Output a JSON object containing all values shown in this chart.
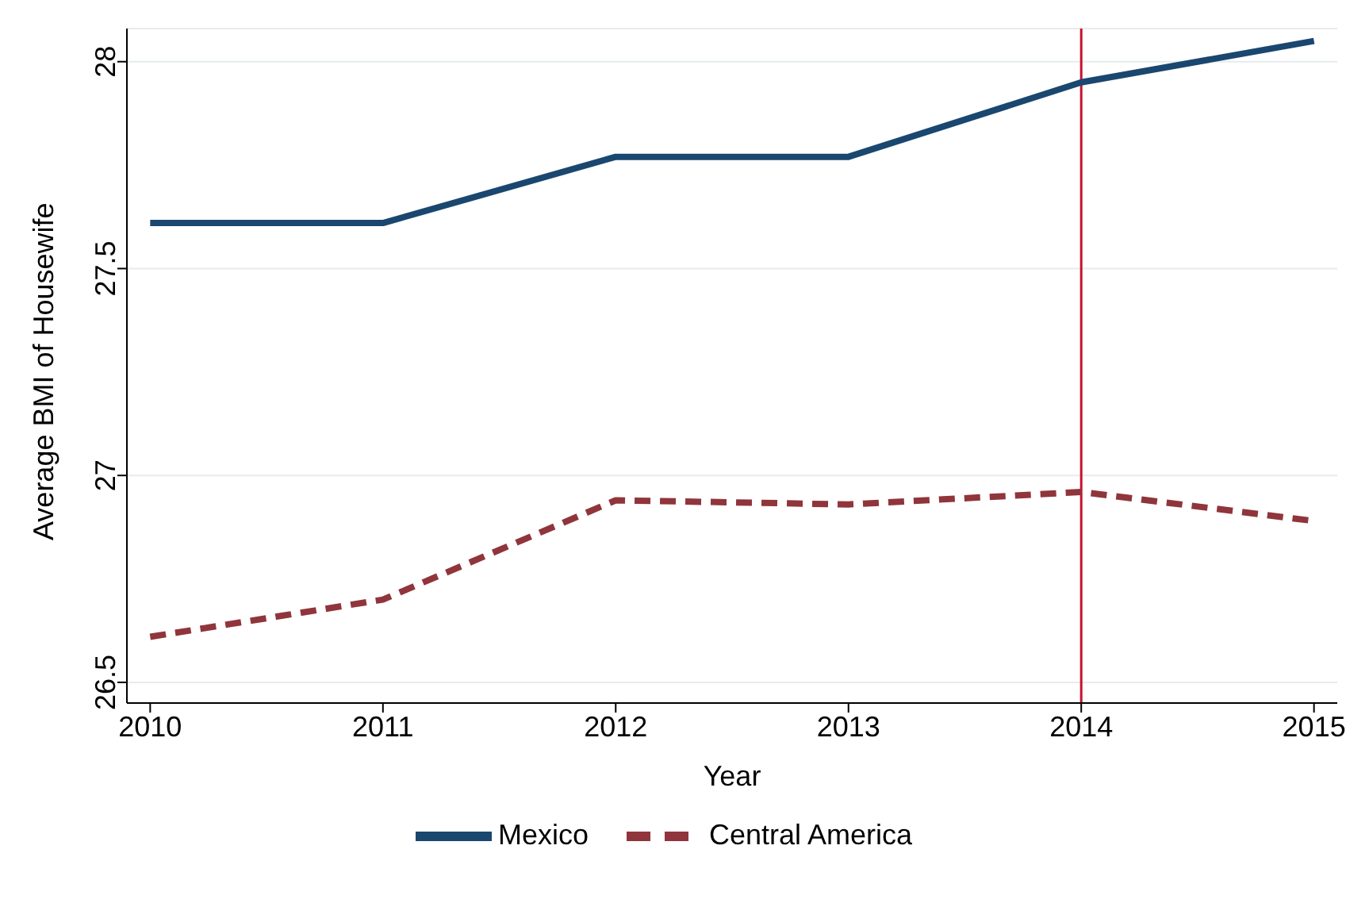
{
  "chart_data": {
    "type": "line",
    "xlabel": "Year",
    "ylabel": "Average BMI of Housewife",
    "x": [
      2010,
      2011,
      2012,
      2013,
      2014,
      2015
    ],
    "series": [
      {
        "name": "Mexico",
        "color": "#1a476f",
        "line_style": "solid",
        "values": [
          27.61,
          27.61,
          27.77,
          27.77,
          27.95,
          28.05
        ]
      },
      {
        "name": "Central America",
        "color": "#90353b",
        "line_style": "dashed",
        "values": [
          26.61,
          26.7,
          26.94,
          26.93,
          26.96,
          26.89
        ]
      }
    ],
    "xlim": [
      2009.9,
      2015.1
    ],
    "xticks": [
      2010,
      2011,
      2012,
      2013,
      2014,
      2015
    ],
    "ylim": [
      26.45,
      28.08
    ],
    "yticks": [
      26.5,
      27,
      27.5,
      28
    ],
    "grid": "y",
    "legend": "bottom",
    "marker": "none",
    "ref_lines": [
      {
        "axis": "x",
        "value": 2014,
        "color": "#c8102e"
      }
    ]
  }
}
